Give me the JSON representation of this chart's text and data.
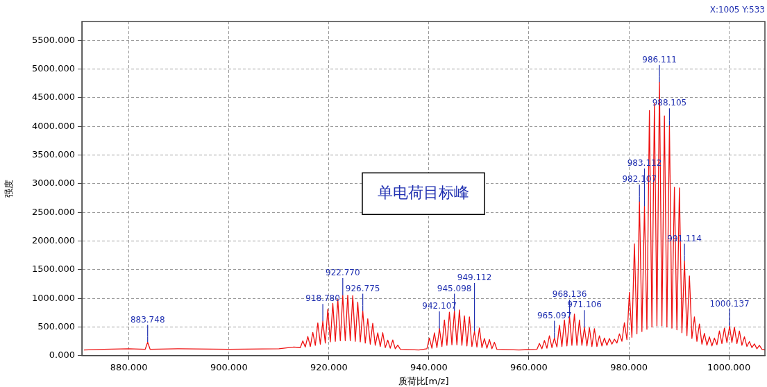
{
  "chart_data": {
    "type": "line",
    "xlabel": "质荷比[m/z]",
    "ylabel": "强度",
    "xlim": [
      870.6,
      1007.2
    ],
    "ylim": [
      0,
      5830
    ],
    "xticks": [
      {
        "value": 880,
        "label": "880.000"
      },
      {
        "value": 900,
        "label": "900.000"
      },
      {
        "value": 920,
        "label": "920.000"
      },
      {
        "value": 940,
        "label": "940.000"
      },
      {
        "value": 960,
        "label": "960.000"
      },
      {
        "value": 980,
        "label": "980.000"
      },
      {
        "value": 1000,
        "label": "1000.000"
      }
    ],
    "yticks": [
      {
        "value": 0,
        "label": "0.000"
      },
      {
        "value": 500,
        "label": "500.000"
      },
      {
        "value": 1000,
        "label": "1000.000"
      },
      {
        "value": 1500,
        "label": "1500.000"
      },
      {
        "value": 2000,
        "label": "2000.000"
      },
      {
        "value": 2500,
        "label": "2500.000"
      },
      {
        "value": 3000,
        "label": "3000.000"
      },
      {
        "value": 3500,
        "label": "3500.000"
      },
      {
        "value": 4000,
        "label": "4000.000"
      },
      {
        "value": 4500,
        "label": "4500.000"
      },
      {
        "value": 5000,
        "label": "5000.000"
      },
      {
        "value": 5500,
        "label": "5500.000"
      }
    ],
    "grid": true,
    "marker": "none",
    "line_style": "solid",
    "series": [
      {
        "color": "#ee1111",
        "x": [
          871,
          875,
          880,
          883.25,
          883.748,
          884.25,
          890,
          900,
          910,
          913,
          914.28,
          914.78,
          915.28,
          915.78,
          916.28,
          916.78,
          917.28,
          917.78,
          918.28,
          918.78,
          919.28,
          919.78,
          920.28,
          920.78,
          921.28,
          921.78,
          922.28,
          922.77,
          923.27,
          923.77,
          924.27,
          924.77,
          925.27,
          925.77,
          926.27,
          926.775,
          927.27,
          927.77,
          928.27,
          928.77,
          929.27,
          929.77,
          930.27,
          930.77,
          931.27,
          931.77,
          932.27,
          932.77,
          933.27,
          933.77,
          934.3,
          938,
          939.6,
          940.1,
          940.6,
          941.1,
          941.6,
          942.107,
          942.6,
          943.1,
          943.6,
          944.1,
          944.6,
          945.098,
          945.6,
          946.1,
          946.6,
          947.1,
          947.6,
          948.1,
          948.6,
          949.112,
          949.6,
          950.1,
          950.6,
          951.1,
          951.6,
          952.1,
          952.6,
          953.1,
          953.6,
          958,
          961.6,
          962.1,
          962.6,
          963.1,
          963.6,
          964.1,
          964.6,
          965.097,
          965.6,
          966.1,
          966.6,
          967.1,
          967.6,
          968.136,
          968.6,
          969.1,
          969.6,
          970.1,
          970.6,
          971.106,
          971.6,
          972.1,
          972.6,
          973.1,
          973.6,
          974.1,
          974.6,
          975.1,
          975.6,
          976.1,
          976.6,
          977.1,
          977.6,
          978.1,
          978.6,
          979.1,
          979.6,
          980.1,
          980.6,
          981.1,
          981.6,
          982.107,
          982.6,
          983.112,
          983.6,
          984.1,
          984.6,
          985.1,
          985.6,
          986.111,
          986.6,
          987.1,
          987.6,
          988.105,
          988.6,
          989.1,
          989.6,
          990.1,
          990.6,
          991.114,
          991.6,
          992.1,
          992.6,
          993.1,
          993.6,
          994.1,
          994.6,
          995.1,
          995.6,
          996.1,
          996.6,
          997.1,
          997.6,
          998.1,
          998.6,
          999.1,
          999.6,
          1000.137,
          1000.6,
          1001.1,
          1001.6,
          1002.1,
          1002.6,
          1003.1,
          1003.6,
          1004.1,
          1004.6,
          1005.1,
          1005.6,
          1006.1,
          1006.6,
          1007.2
        ],
        "values": [
          100,
          110,
          120,
          110,
          233,
          110,
          120,
          110,
          120,
          150,
          140,
          258,
          150,
          335,
          160,
          405,
          180,
          570,
          200,
          600,
          220,
          810,
          240,
          912,
          250,
          982,
          260,
          1050,
          260,
          1056,
          260,
          1048,
          250,
          933,
          240,
          777,
          220,
          642,
          200,
          565,
          180,
          397,
          160,
          400,
          140,
          270,
          130,
          273,
          120,
          184,
          110,
          100,
          120,
          307,
          130,
          397,
          140,
          470,
          160,
          622,
          180,
          757,
          190,
          777,
          190,
          798,
          180,
          696,
          170,
          675,
          160,
          421,
          150,
          483,
          140,
          299,
          130,
          282,
          120,
          233,
          110,
          100,
          110,
          213,
          120,
          266,
          130,
          348,
          140,
          307,
          150,
          532,
          160,
          622,
          170,
          675,
          180,
          724,
          180,
          622,
          180,
          491,
          170,
          487,
          160,
          470,
          160,
          348,
          170,
          307,
          180,
          299,
          200,
          287,
          220,
          381,
          250,
          573,
          280,
          1105,
          320,
          1950,
          380,
          2681,
          420,
          2600,
          460,
          4277,
          500,
          4400,
          520,
          4768,
          520,
          4184,
          500,
          4012,
          480,
          2935,
          450,
          2927,
          400,
          1650,
          350,
          1391,
          300,
          675,
          250,
          553,
          200,
          389,
          180,
          328,
          170,
          307,
          190,
          430,
          210,
          479,
          230,
          512,
          230,
          495,
          210,
          430,
          180,
          328,
          160,
          245,
          140,
          205,
          120,
          180,
          110,
          100
        ]
      }
    ],
    "annotations": [
      "X:1005 Y:533",
      "单电荷目标峰",
      {
        "text": "883.748",
        "x": 883.748,
        "y": 233
      },
      {
        "text": "918.780",
        "x": 918.78,
        "y": 600
      },
      {
        "text": "922.770",
        "x": 922.77,
        "y": 1050
      },
      {
        "text": "926.775",
        "x": 926.775,
        "y": 777
      },
      {
        "text": "942.107",
        "x": 942.107,
        "y": 470
      },
      {
        "text": "945.098",
        "x": 945.098,
        "y": 777
      },
      {
        "text": "949.112",
        "x": 949.112,
        "y": 421
      },
      {
        "text": "965.097",
        "x": 965.097,
        "y": 307
      },
      {
        "text": "968.136",
        "x": 968.136,
        "y": 675
      },
      {
        "text": "971.106",
        "x": 971.106,
        "y": 491
      },
      {
        "text": "982.107",
        "x": 982.107,
        "y": 2681
      },
      {
        "text": "983.112",
        "x": 983.112,
        "y": 2600
      },
      {
        "text": "986.111",
        "x": 986.111,
        "y": 4768
      },
      {
        "text": "988.105",
        "x": 988.105,
        "y": 4012
      },
      {
        "text": "991.114",
        "x": 991.114,
        "y": 1650
      },
      {
        "text": "1000.137",
        "x": 1000.137,
        "y": 512
      }
    ]
  }
}
